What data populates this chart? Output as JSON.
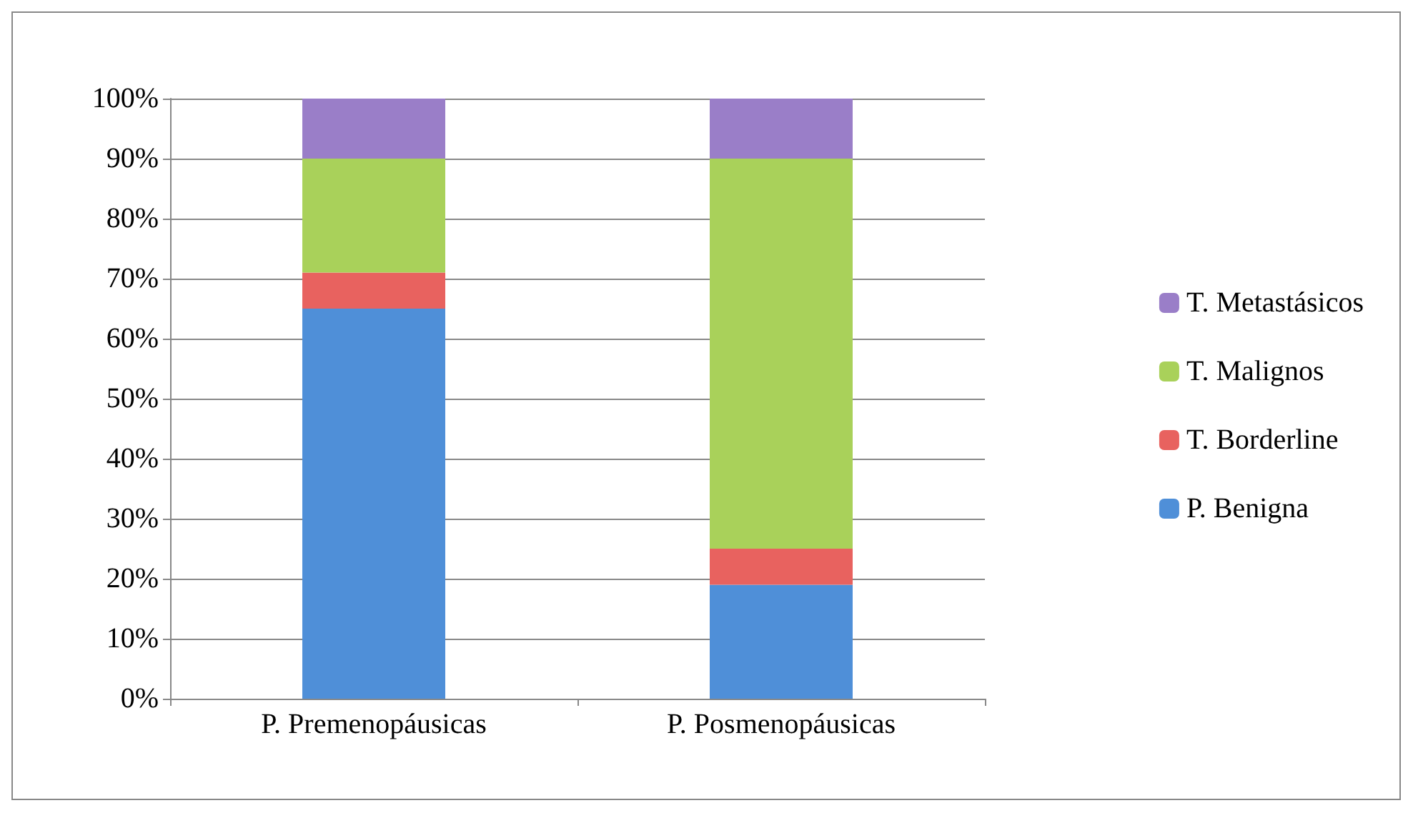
{
  "chart_data": {
    "type": "bar",
    "stacked": true,
    "categories": [
      "P. Premenopáusicas",
      "P. Posmenopáusicas"
    ],
    "series": [
      {
        "name": "P. Benigna",
        "color": "#4f8fd8",
        "values": [
          65,
          19
        ]
      },
      {
        "name": "T. Borderline",
        "color": "#e8625f",
        "values": [
          6,
          6
        ]
      },
      {
        "name": "T. Malignos",
        "color": "#a9d15a",
        "values": [
          19,
          65
        ]
      },
      {
        "name": "T. Metastásicos",
        "color": "#9a7ec8",
        "values": [
          10,
          10
        ]
      }
    ],
    "ylim": [
      0,
      100
    ],
    "yticks": [
      {
        "value": 0,
        "label": "0%"
      },
      {
        "value": 10,
        "label": "10%"
      },
      {
        "value": 20,
        "label": "20%"
      },
      {
        "value": 30,
        "label": "30%"
      },
      {
        "value": 40,
        "label": "40%"
      },
      {
        "value": 50,
        "label": "50%"
      },
      {
        "value": 60,
        "label": "60%"
      },
      {
        "value": 70,
        "label": "70%"
      },
      {
        "value": 80,
        "label": "80%"
      },
      {
        "value": 90,
        "label": "90%"
      },
      {
        "value": 100,
        "label": "100%"
      }
    ],
    "grid": "y",
    "legend": "right"
  }
}
